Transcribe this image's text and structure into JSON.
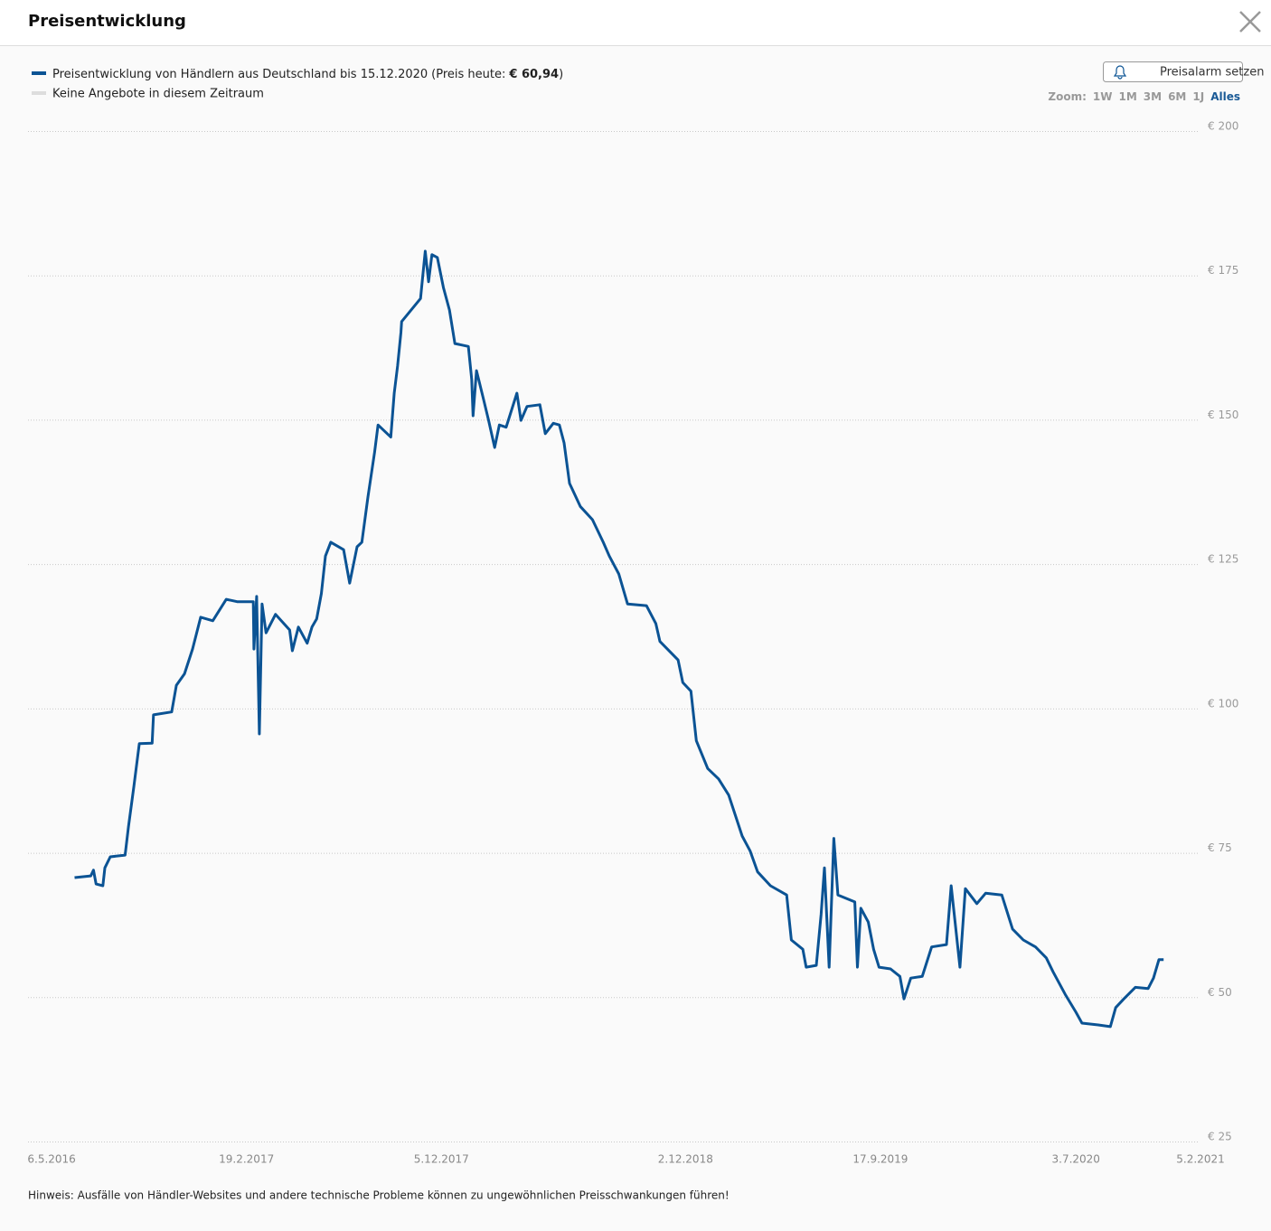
{
  "header": {
    "title": "Preisentwicklung"
  },
  "legend": {
    "price_prefix": "(Preis heute:",
    "price": "€ 60,94",
    "price_suffix": ")",
    "no_offers": {
      "name": "Keine Angebote in diesem Zeitraum",
      "color": "#dddddd"
    }
  },
  "alarm_button": "Preisalarm setzen",
  "zoom": {
    "label": "Zoom:",
    "options": [
      "1W",
      "1M",
      "3M",
      "6M",
      "1J",
      "Alles"
    ],
    "active": 5
  },
  "chart_data": {
    "type": "line",
    "xlim": [
      "2016-04-01",
      "2021-01-01"
    ],
    "xticks": [
      {
        "value": "2016-05-06",
        "label": "6.5.2016"
      },
      {
        "value": "2017-02-19",
        "label": "19.2.2017"
      },
      {
        "value": "2017-12-05",
        "label": "5.12.2017"
      },
      {
        "value": "2018-12-02",
        "label": "2.12.2018"
      },
      {
        "value": "2019-09-17",
        "label": "17.9.2019"
      },
      {
        "value": "2020-07-03",
        "label": "3.7.2020"
      },
      {
        "value": "2021-02-05",
        "label": "5.2.2021"
      }
    ],
    "ylim": [
      25,
      200
    ],
    "yticks": [
      {
        "value": 25,
        "label": "€ 25"
      },
      {
        "value": 50,
        "label": "€ 50"
      },
      {
        "value": 75,
        "label": "€ 75"
      },
      {
        "value": 100,
        "label": "€ 100"
      },
      {
        "value": 125,
        "label": "€ 125"
      },
      {
        "value": 150,
        "label": "€ 150"
      },
      {
        "value": 175,
        "label": "€ 175"
      },
      {
        "value": 200,
        "label": "€ 200"
      }
    ],
    "grid": true,
    "x": [
      "2016-06-09",
      "2016-07-03",
      "2016-07-07",
      "2016-07-11",
      "2016-07-21",
      "2016-07-24",
      "2016-08-01",
      "2016-08-23",
      "2016-08-28",
      "2016-09-05",
      "2016-09-13",
      "2016-10-02",
      "2016-10-04",
      "2016-10-31",
      "2016-11-07",
      "2016-11-19",
      "2016-12-01",
      "2016-12-13",
      "2016-12-31",
      "2017-01-20",
      "2017-02-05",
      "2017-03-01",
      "2017-03-02",
      "2017-03-06",
      "2017-03-10",
      "2017-03-14",
      "2017-03-20",
      "2017-04-03",
      "2017-04-24",
      "2017-04-28",
      "2017-05-07",
      "2017-05-20",
      "2017-05-27",
      "2017-06-03",
      "2017-06-10",
      "2017-06-16",
      "2017-06-24",
      "2017-07-13",
      "2017-07-22",
      "2017-08-02",
      "2017-08-09",
      "2017-08-18",
      "2017-08-28",
      "2017-09-02",
      "2017-09-21",
      "2017-09-26",
      "2017-10-01",
      "2017-10-06",
      "2017-10-07",
      "2017-11-04",
      "2017-11-11",
      "2017-11-16",
      "2017-11-21",
      "2017-11-29",
      "2017-12-08",
      "2017-12-17",
      "2017-12-25",
      "2018-01-14",
      "2018-01-19",
      "2018-01-21",
      "2018-01-26",
      "2018-02-05",
      "2018-02-13",
      "2018-02-22",
      "2018-03-01",
      "2018-03-11",
      "2018-03-27",
      "2018-04-02",
      "2018-04-11",
      "2018-04-30",
      "2018-05-08",
      "2018-05-20",
      "2018-05-29",
      "2018-06-05",
      "2018-06-13",
      "2018-06-29",
      "2018-07-17",
      "2018-08-02",
      "2018-08-11",
      "2018-08-25",
      "2018-09-07",
      "2018-10-05",
      "2018-10-19",
      "2018-10-25",
      "2018-11-21",
      "2018-11-28",
      "2018-12-10",
      "2018-12-18",
      "2019-01-04",
      "2019-01-20",
      "2019-02-04",
      "2019-02-24",
      "2019-03-08",
      "2019-03-19",
      "2019-04-07",
      "2019-05-01",
      "2019-05-08",
      "2019-05-25",
      "2019-05-30",
      "2019-06-14",
      "2019-06-21",
      "2019-06-26",
      "2019-07-03",
      "2019-07-10",
      "2019-07-16",
      "2019-08-10",
      "2019-08-14",
      "2019-08-19",
      "2019-08-30",
      "2019-09-07",
      "2019-09-15",
      "2019-10-02",
      "2019-10-16",
      "2019-10-22",
      "2019-11-01",
      "2019-11-18",
      "2019-12-02",
      "2019-12-24",
      "2019-12-31",
      "2020-01-13",
      "2020-01-21",
      "2020-02-07",
      "2020-02-20",
      "2020-03-15",
      "2020-03-31",
      "2020-04-16",
      "2020-05-04",
      "2020-05-20",
      "2020-05-30",
      "2020-06-17",
      "2020-07-03",
      "2020-07-12",
      "2020-08-05",
      "2020-08-23",
      "2020-08-31",
      "2020-09-12",
      "2020-09-29",
      "2020-10-18",
      "2020-10-26",
      "2020-11-03",
      "2020-11-10"
    ],
    "series": [
      {
        "name": "Preisentwicklung von Händlern aus Deutschland bis 15.12.2020",
        "color": "#0b5394",
        "values": [
          70.7,
          71,
          72,
          69.6,
          69.3,
          72.4,
          74.3,
          74.6,
          79.5,
          86.5,
          93.9,
          94,
          98.9,
          99.4,
          104,
          106,
          110.3,
          115.8,
          115.2,
          118.9,
          118.5,
          118.5,
          110.3,
          119.4,
          95.6,
          118.1,
          113.1,
          116.3,
          113.6,
          110,
          114.1,
          111.3,
          114.1,
          115.5,
          119.9,
          126.4,
          128.8,
          127.5,
          121.7,
          128,
          128.8,
          136.6,
          144.4,
          149.1,
          147,
          154.6,
          159.3,
          165.1,
          167,
          171,
          179.2,
          173.9,
          178.6,
          178.1,
          172.9,
          169,
          163.2,
          162.7,
          157,
          150.7,
          158.5,
          153.8,
          149.9,
          145.2,
          149.1,
          148.7,
          154.6,
          149.9,
          152.3,
          152.6,
          147.6,
          149.4,
          149.1,
          146,
          139,
          135,
          132.7,
          128.8,
          126.4,
          123.3,
          118.1,
          117.8,
          114.7,
          111.6,
          108.4,
          104.5,
          103,
          94.4,
          89.6,
          87.8,
          85,
          77.9,
          75.3,
          71.7,
          69.3,
          67.7,
          59.9,
          58.3,
          55.2,
          55.5,
          64.3,
          72.4,
          55.2,
          77.5,
          67.7,
          66.5,
          55.2,
          65.4,
          63,
          58.3,
          55.2,
          54.9,
          53.6,
          49.7,
          53.3,
          53.6,
          58.7,
          59.1,
          69.3,
          55.2,
          68.8,
          66.2,
          68,
          67.7,
          61.8,
          59.9,
          58.7,
          56.8,
          54.4,
          50.5,
          47.4,
          45.5,
          45.2,
          44.9,
          48.2,
          49.7,
          51.7,
          51.5,
          53.3,
          56.5,
          56.5
        ]
      }
    ]
  },
  "footer": "Hinweis: Ausfälle von Händler-Websites und andere technische Probleme können zu ungewöhnlichen Preisschwankungen führen!"
}
